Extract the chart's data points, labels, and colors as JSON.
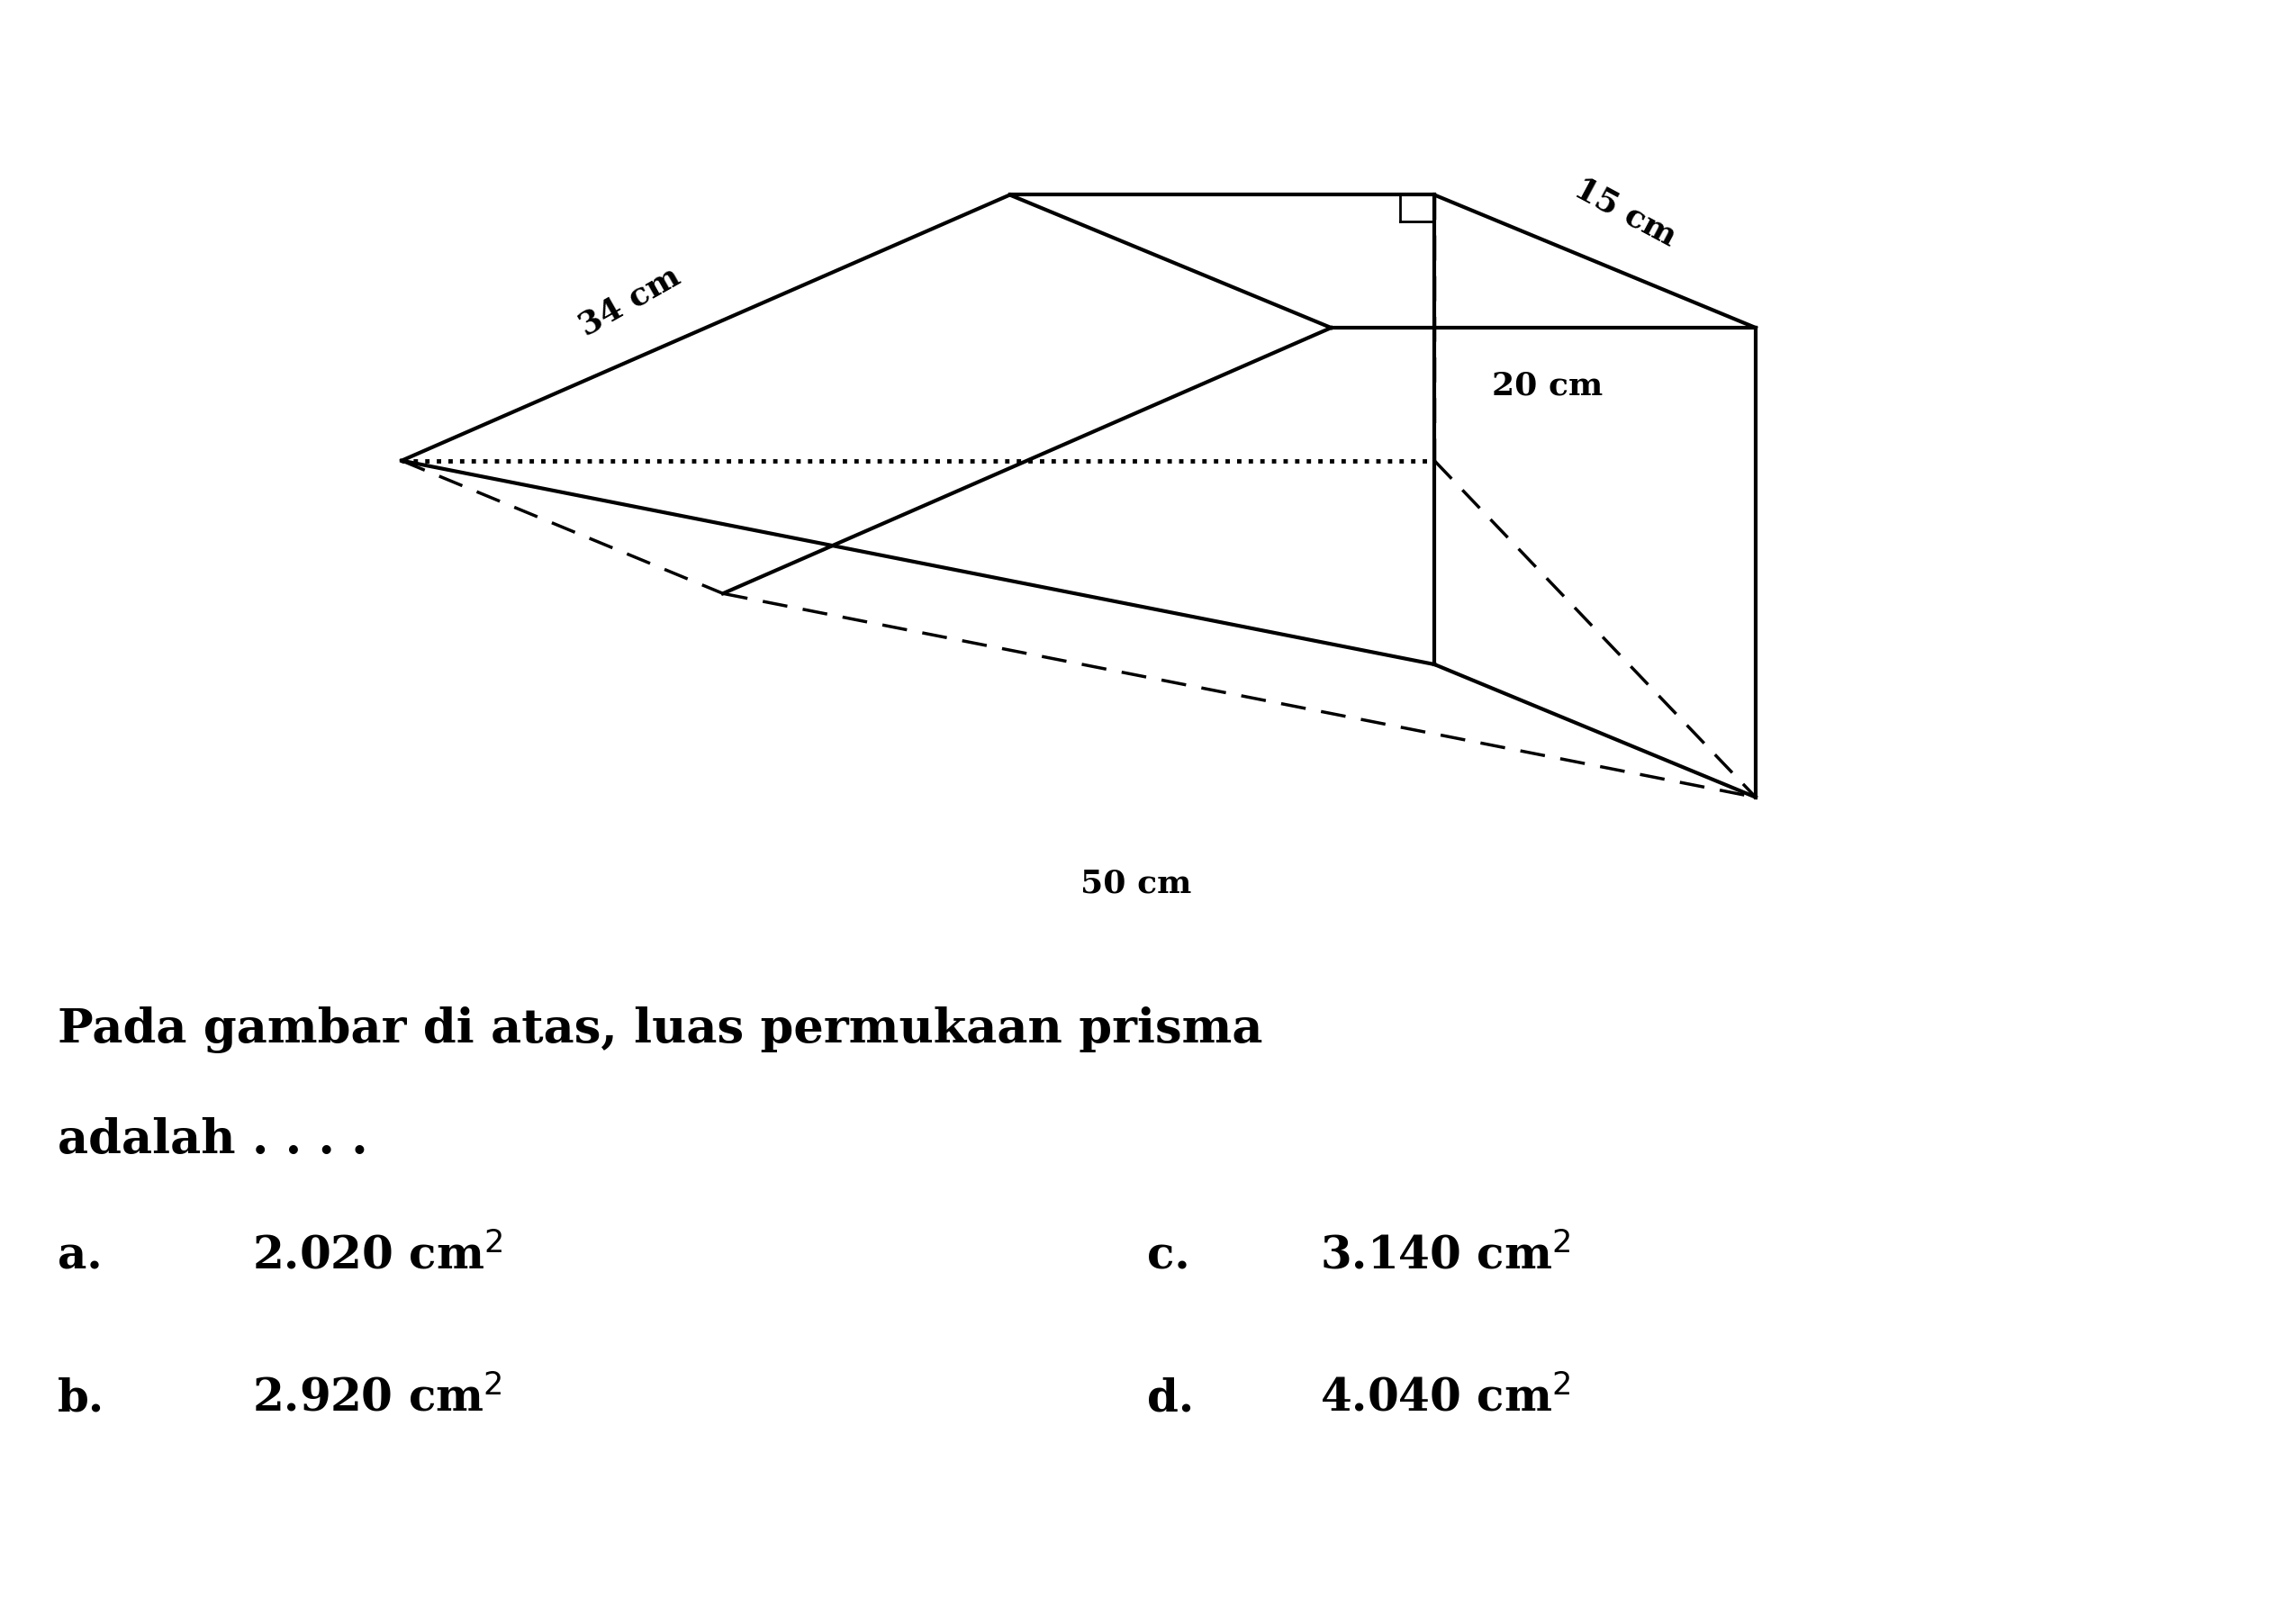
{
  "label_34": "34 cm",
  "label_15": "15 cm",
  "label_20": "20 cm",
  "label_50": "50 cm",
  "question_line1": "Pada gambar di atas, luas permukaan prisma",
  "question_line2": "adalah . . . .",
  "option_a_letter": "a.",
  "option_b_letter": "b.",
  "option_c_letter": "c.",
  "option_d_letter": "d.",
  "value_a": "2.020 cm",
  "value_b": "2.920 cm",
  "value_c": "3.140 cm",
  "value_d": "4.040 cm",
  "bg_color": "#ffffff",
  "line_color": "#000000",
  "font_size_label": 26,
  "font_size_question": 38,
  "font_size_options": 36
}
